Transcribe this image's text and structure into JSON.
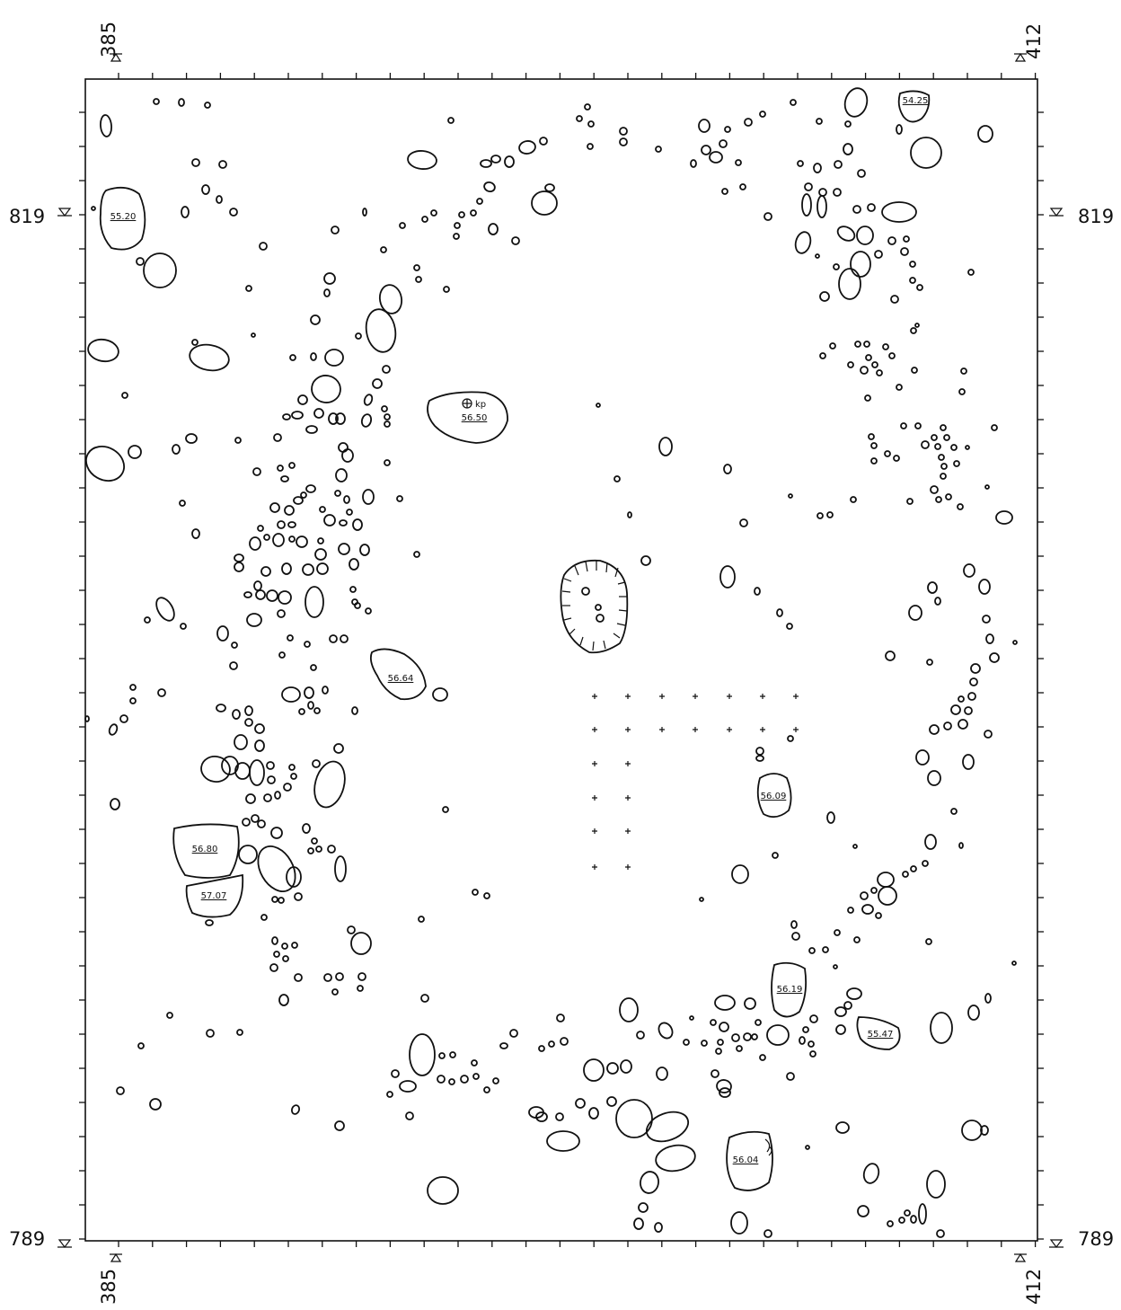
{
  "coordinates": {
    "north_top_left": "385",
    "north_top_right": "412",
    "north_bottom_left": "385",
    "north_bottom_right": "412",
    "east_upper_left": "819",
    "east_upper_right": "819",
    "east_lower_left": "789",
    "east_lower_right": "789"
  },
  "elevations": [
    "55.20",
    "54.25",
    "56.50",
    "56.64",
    "56.80",
    "57.07",
    "56.09",
    "56.19",
    "55.47",
    "56.04"
  ],
  "kp_label": "kp",
  "colors": {
    "ink": "#111111",
    "paper": "#ffffff"
  }
}
